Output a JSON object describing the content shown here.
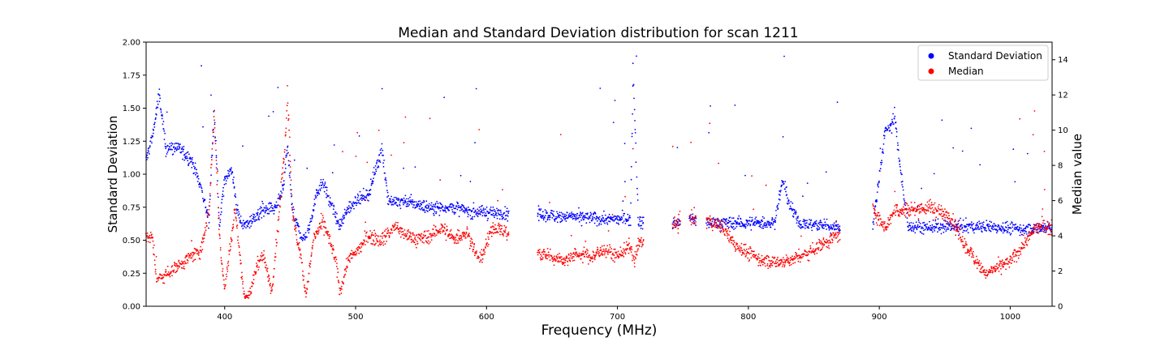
{
  "chart_data": {
    "type": "scatter",
    "title": "Median and Standard Deviation distribution for scan 1211",
    "xlabel": "Frequency (MHz)",
    "ylabel_left": "Standard Deviation",
    "ylabel_right": "Median value",
    "xlim": [
      340,
      1032
    ],
    "ylim_left": [
      0,
      2.0
    ],
    "ylim_right": [
      0,
      15
    ],
    "x_ticks": [
      400,
      500,
      600,
      700,
      800,
      900,
      1000
    ],
    "y_ticks_left": [
      "0.00",
      "0.25",
      "0.50",
      "0.75",
      "1.00",
      "1.25",
      "1.50",
      "1.75",
      "2.00"
    ],
    "y_ticks_right": [
      0,
      2,
      4,
      6,
      8,
      10,
      12,
      14
    ],
    "grid": false,
    "legend_position": "top-right",
    "series": [
      {
        "name": "Standard Deviation",
        "axis": "left",
        "color": "#0000ff",
        "profile": [
          [
            340,
            1.1
          ],
          [
            345,
            1.3
          ],
          [
            350,
            1.6
          ],
          [
            355,
            1.2
          ],
          [
            365,
            1.2
          ],
          [
            375,
            1.1
          ],
          [
            382,
            0.9
          ],
          [
            388,
            0.65
          ],
          [
            392,
            1.5
          ],
          [
            396,
            0.6
          ],
          [
            400,
            0.95
          ],
          [
            405,
            1.05
          ],
          [
            410,
            0.7
          ],
          [
            415,
            0.6
          ],
          [
            420,
            0.65
          ],
          [
            430,
            0.72
          ],
          [
            440,
            0.75
          ],
          [
            445,
            0.9
          ],
          [
            448,
            1.2
          ],
          [
            452,
            0.7
          ],
          [
            460,
            0.5
          ],
          [
            465,
            0.6
          ],
          [
            470,
            0.85
          ],
          [
            475,
            0.95
          ],
          [
            480,
            0.8
          ],
          [
            488,
            0.6
          ],
          [
            495,
            0.75
          ],
          [
            500,
            0.8
          ],
          [
            510,
            0.85
          ],
          [
            520,
            1.2
          ],
          [
            525,
            0.8
          ],
          [
            545,
            0.78
          ],
          [
            555,
            0.75
          ],
          [
            565,
            0.75
          ],
          [
            575,
            0.75
          ],
          [
            585,
            0.72
          ],
          [
            600,
            0.71
          ],
          [
            615,
            0.7
          ],
          [
            640,
            0.69
          ],
          [
            660,
            0.68
          ],
          [
            690,
            0.66
          ],
          [
            710,
            0.66
          ],
          [
            712,
            1.8
          ],
          [
            716,
            0.64
          ],
          [
            724,
            0.63
          ],
          [
            745,
            0.63
          ],
          [
            756,
            0.66
          ],
          [
            770,
            0.63
          ],
          [
            800,
            0.63
          ],
          [
            820,
            0.63
          ],
          [
            826,
            0.95
          ],
          [
            832,
            0.75
          ],
          [
            840,
            0.62
          ],
          [
            850,
            0.62
          ],
          [
            868,
            0.6
          ],
          [
            895,
            0.6
          ],
          [
            905,
            1.35
          ],
          [
            912,
            1.4
          ],
          [
            918,
            0.9
          ],
          [
            922,
            0.6
          ],
          [
            940,
            0.6
          ],
          [
            970,
            0.6
          ],
          [
            990,
            0.6
          ],
          [
            1010,
            0.58
          ],
          [
            1030,
            0.6
          ]
        ],
        "gaps": [
          [
            617,
            639
          ],
          [
            720,
            742
          ],
          [
            748,
            755
          ],
          [
            760,
            768
          ],
          [
            870,
            895
          ]
        ]
      },
      {
        "name": "Median",
        "axis": "right",
        "color": "#ff0000",
        "profile": [
          [
            340,
            4.0
          ],
          [
            345,
            3.8
          ],
          [
            348,
            1.5
          ],
          [
            355,
            1.8
          ],
          [
            362,
            2.2
          ],
          [
            382,
            3.2
          ],
          [
            388,
            5.5
          ],
          [
            392,
            11.0
          ],
          [
            396,
            4.0
          ],
          [
            400,
            1.0
          ],
          [
            408,
            5.5
          ],
          [
            415,
            0.5
          ],
          [
            420,
            0.8
          ],
          [
            425,
            2.5
          ],
          [
            430,
            2.8
          ],
          [
            436,
            0.8
          ],
          [
            442,
            5.5
          ],
          [
            446,
            9.0
          ],
          [
            448,
            12.0
          ],
          [
            452,
            5.0
          ],
          [
            458,
            3.0
          ],
          [
            462,
            0.6
          ],
          [
            468,
            3.8
          ],
          [
            475,
            4.8
          ],
          [
            480,
            3.8
          ],
          [
            485,
            2.5
          ],
          [
            488,
            0.8
          ],
          [
            495,
            2.8
          ],
          [
            500,
            3.0
          ],
          [
            510,
            4.0
          ],
          [
            520,
            3.8
          ],
          [
            530,
            4.5
          ],
          [
            540,
            4.0
          ],
          [
            548,
            3.8
          ],
          [
            558,
            4.0
          ],
          [
            565,
            4.5
          ],
          [
            575,
            3.8
          ],
          [
            585,
            4.2
          ],
          [
            595,
            2.5
          ],
          [
            605,
            4.5
          ],
          [
            615,
            4.2
          ],
          [
            640,
            3.0
          ],
          [
            650,
            2.8
          ],
          [
            660,
            2.6
          ],
          [
            670,
            3.0
          ],
          [
            680,
            2.8
          ],
          [
            690,
            3.2
          ],
          [
            700,
            2.9
          ],
          [
            710,
            3.4
          ],
          [
            713,
            2.5
          ],
          [
            716,
            3.5
          ],
          [
            724,
            3.8
          ],
          [
            745,
            4.7
          ],
          [
            756,
            5.0
          ],
          [
            770,
            4.8
          ],
          [
            780,
            4.5
          ],
          [
            790,
            3.5
          ],
          [
            800,
            3.0
          ],
          [
            810,
            2.6
          ],
          [
            825,
            2.5
          ],
          [
            835,
            2.7
          ],
          [
            845,
            3.0
          ],
          [
            855,
            3.5
          ],
          [
            868,
            4.0
          ],
          [
            895,
            5.5
          ],
          [
            905,
            4.5
          ],
          [
            912,
            5.5
          ],
          [
            925,
            5.5
          ],
          [
            940,
            5.6
          ],
          [
            955,
            5.0
          ],
          [
            965,
            3.5
          ],
          [
            975,
            2.5
          ],
          [
            982,
            1.8
          ],
          [
            990,
            2.2
          ],
          [
            1000,
            2.5
          ],
          [
            1010,
            3.5
          ],
          [
            1020,
            4.5
          ],
          [
            1030,
            4.5
          ]
        ],
        "gaps": [
          [
            617,
            639
          ],
          [
            720,
            742
          ],
          [
            748,
            755
          ],
          [
            760,
            768
          ],
          [
            870,
            895
          ]
        ]
      }
    ]
  }
}
